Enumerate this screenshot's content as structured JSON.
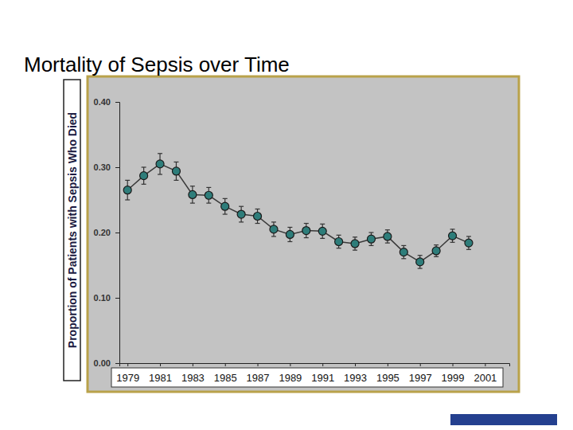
{
  "chart_data": {
    "type": "line",
    "title": "Mortality of Sepsis over Time",
    "y_label": "Proportion of Patients with Sepsis Who Died",
    "x": [
      1979,
      1980,
      1981,
      1982,
      1983,
      1984,
      1985,
      1986,
      1987,
      1988,
      1989,
      1990,
      1991,
      1992,
      1993,
      1994,
      1995,
      1996,
      1997,
      1998,
      1999,
      2000
    ],
    "series": [
      {
        "color": "#2e7d7a",
        "marker": "circle",
        "values": [
          0.265,
          0.287,
          0.305,
          0.294,
          0.258,
          0.257,
          0.24,
          0.228,
          0.225,
          0.205,
          0.197,
          0.203,
          0.202,
          0.186,
          0.183,
          0.19,
          0.194,
          0.17,
          0.155,
          0.172,
          0.195,
          0.184
        ],
        "error": [
          0.015,
          0.013,
          0.016,
          0.014,
          0.013,
          0.012,
          0.012,
          0.012,
          0.011,
          0.011,
          0.011,
          0.011,
          0.011,
          0.01,
          0.01,
          0.01,
          0.01,
          0.01,
          0.01,
          0.009,
          0.01,
          0.01
        ]
      }
    ],
    "xlim": [
      1978.5,
      2002.5
    ],
    "xticks": [
      1979,
      1981,
      1983,
      1985,
      1987,
      1989,
      1991,
      1993,
      1995,
      1997,
      1999,
      2001
    ],
    "ylim": [
      0,
      0.4
    ],
    "yticks": [
      {
        "value": 0,
        "label": "0.00"
      },
      {
        "value": 0.1,
        "label": "0.10"
      },
      {
        "value": 0.2,
        "label": "0.20"
      },
      {
        "value": 0.3,
        "label": "0.30"
      },
      {
        "value": 0.4,
        "label": "0.40"
      }
    ]
  }
}
